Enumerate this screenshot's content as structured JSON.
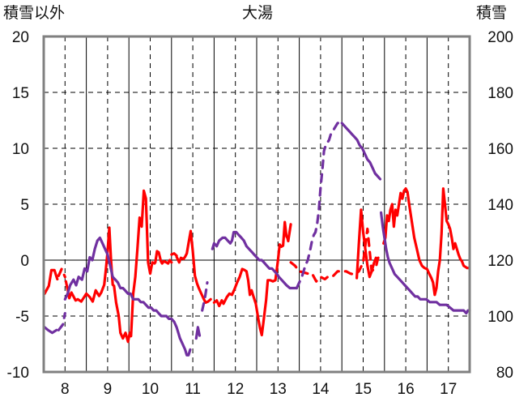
{
  "chart_data": {
    "type": "line",
    "title": "大湯",
    "left_axis_label": "積雪以外",
    "right_axis_label": "積雪",
    "y_left": {
      "min": -10,
      "max": 20,
      "step": 5,
      "ticks": [
        "20",
        "15",
        "10",
        "5",
        "0",
        "-5",
        "-10"
      ]
    },
    "y_right": {
      "min": 80,
      "max": 200,
      "step": 20,
      "ticks": [
        "200",
        "180",
        "160",
        "140",
        "120",
        "100",
        "80"
      ]
    },
    "x": {
      "min": 7.5,
      "max": 17.5,
      "ticks": [
        "8",
        "9",
        "10",
        "11",
        "12",
        "13",
        "14",
        "15",
        "16",
        "17"
      ]
    },
    "grid": {
      "vertical_solid_at_day_boundaries": true,
      "dashed_at_day_labels": true,
      "horizontal_dashed_at": [
        -5,
        5,
        10,
        15
      ]
    },
    "colors": {
      "temperature": "#ff0000",
      "snow_depth": "#7030a0",
      "axis": "#808080",
      "grid": "#000000"
    },
    "series": [
      {
        "axis": "left",
        "color": "#ff0000",
        "segments": [
          {
            "style": "solid",
            "x": [
              7.52,
              7.62,
              7.68,
              7.75,
              7.82
            ],
            "y": [
              -3.0,
              -2.3,
              -0.9,
              -0.9,
              -1.7
            ]
          },
          {
            "style": "dashed",
            "x": [
              7.85,
              7.92,
              8.0
            ],
            "y": [
              -1.4,
              -0.8,
              -1.5
            ]
          },
          {
            "style": "solid",
            "x": [
              8.02,
              8.1,
              8.15,
              8.25,
              8.3,
              8.38,
              8.45,
              8.5,
              8.58,
              8.65,
              8.72,
              8.8,
              8.85,
              8.92,
              8.96,
              9.0,
              9.04,
              9.08,
              9.12,
              9.15,
              9.2,
              9.26,
              9.3,
              9.36,
              9.42,
              9.48,
              9.52,
              9.55,
              9.6,
              9.65,
              9.7,
              9.75,
              9.8,
              9.85,
              9.9,
              9.95,
              10.0,
              10.05,
              10.1,
              10.12,
              10.16,
              10.2,
              10.25,
              10.28,
              10.32,
              10.38,
              10.42,
              10.46,
              10.5
            ],
            "y": [
              -1.9,
              -3.4,
              -2.9,
              -3.6,
              -3.5,
              -3.7,
              -3.3,
              -3.0,
              -3.3,
              -3.7,
              -2.7,
              -3.2,
              -2.9,
              -2.2,
              -0.8,
              0.8,
              2.9,
              0.0,
              -2.2,
              -2.3,
              -3.8,
              -5.0,
              -6.5,
              -7.0,
              -6.5,
              -7.3,
              -6.5,
              -6.8,
              -3.0,
              -1.5,
              1.0,
              3.8,
              3.0,
              6.2,
              5.5,
              -0.2,
              -1.2,
              -0.2,
              -0.3,
              -0.2,
              0.8,
              0.7,
              -0.1,
              -0.3,
              -0.1,
              -0.2,
              -0.3,
              0.0,
              -0.2
            ]
          },
          {
            "style": "dashed",
            "x": [
              10.5,
              10.56,
              10.62
            ],
            "y": [
              0.5,
              0.6,
              0.4
            ]
          },
          {
            "style": "solid",
            "x": [
              10.62,
              10.68,
              10.72,
              10.78,
              10.82,
              10.86,
              10.9,
              10.95,
              11.0,
              11.05,
              11.1,
              11.14,
              11.2,
              11.26,
              11.3,
              11.36,
              11.42
            ],
            "y": [
              0.3,
              -0.2,
              0.2,
              0.1,
              0.3,
              0.6,
              1.5,
              2.6,
              0.8,
              -1.4,
              -2.1,
              -2.5,
              -3.0,
              -3.5,
              -3.8,
              -3.7,
              -3.5
            ]
          },
          {
            "style": "solid",
            "x": [
              11.5,
              11.56,
              11.62,
              11.68,
              11.72,
              11.8,
              11.86,
              11.92,
              11.98,
              12.04,
              12.1,
              12.16,
              12.22,
              12.26,
              12.3,
              12.34,
              12.38,
              12.42,
              12.48,
              12.54,
              12.58,
              12.62,
              12.66,
              12.72,
              12.76,
              12.82,
              12.88,
              12.94,
              13.0,
              13.04,
              13.08,
              13.12,
              13.16,
              13.2,
              13.22,
              13.24,
              13.3
            ],
            "y": [
              -3.8,
              -3.6,
              -4.1,
              -3.6,
              -3.9,
              -3.3,
              -3.0,
              -3.1,
              -2.6,
              -2.0,
              -1.5,
              -0.8,
              -0.9,
              -1.0,
              -1.8,
              -3.1,
              -2.7,
              -3.2,
              -3.9,
              -5.3,
              -6.1,
              -6.7,
              -5.5,
              -3.6,
              -1.8,
              -1.8,
              -1.9,
              -1.8,
              0.0,
              1.4,
              1.2,
              1.3,
              3.4,
              2.1,
              2.0,
              1.7,
              3.2
            ]
          }
        ]
      },
      {
        "axis": "left",
        "color": "#ff0000",
        "segments": [
          {
            "style": "dashed",
            "x": [
              13.3,
              13.4,
              13.5,
              13.6,
              13.7,
              13.8,
              13.9,
              14.0,
              14.1,
              14.2,
              14.3,
              14.4,
              14.5,
              14.6,
              14.7,
              14.8,
              14.9,
              15.0,
              15.1,
              15.2,
              15.3,
              15.35,
              15.42
            ],
            "y": [
              -0.2,
              -0.5,
              -1.0,
              -1.1,
              -1.2,
              -1.2,
              -1.9,
              -1.5,
              -1.7,
              -1.4,
              -1.4,
              -1.0,
              -1.0,
              -1.0,
              -1.2,
              -1.3,
              -1.0,
              -0.2,
              2.8,
              -1.0,
              -0.6,
              0.2,
              0.3
            ]
          },
          {
            "style": "solid",
            "x": [
              14.85,
              14.9,
              14.95,
              15.0,
              15.05,
              15.1,
              15.15,
              15.2,
              15.25,
              15.3
            ],
            "y": [
              -1.6,
              1.5,
              4.5,
              2.5,
              1.0,
              -0.5,
              -1.5,
              -1.0,
              -0.3,
              0.2
            ]
          },
          {
            "style": "solid",
            "x": [
              15.48,
              15.52,
              15.56,
              15.6,
              15.64,
              15.68,
              15.72,
              15.76,
              15.8,
              15.84,
              15.88,
              15.92,
              15.96,
              16.0,
              16.04,
              16.08,
              16.12,
              16.16,
              16.2,
              16.26,
              16.32,
              16.38,
              16.44,
              16.5,
              16.56,
              16.6,
              16.64,
              16.68,
              16.72,
              16.76,
              16.8,
              16.84,
              16.88,
              16.92,
              16.96,
              17.0,
              17.04,
              17.08,
              17.12,
              17.16,
              17.2,
              17.24,
              17.28,
              17.32,
              17.36,
              17.4,
              17.44,
              17.48
            ],
            "y": [
              1.5,
              2.0,
              4.0,
              3.5,
              4.5,
              5.0,
              3.0,
              4.5,
              4.0,
              5.0,
              6.0,
              5.5,
              6.2,
              6.4,
              6.1,
              5.0,
              4.0,
              3.0,
              2.0,
              1.0,
              0.0,
              -0.5,
              -0.7,
              -0.8,
              -1.3,
              -1.6,
              -2.0,
              -3.1,
              -2.5,
              -1.0,
              0.0,
              2.4,
              6.4,
              5.0,
              3.5,
              3.2,
              2.8,
              2.0,
              1.0,
              1.5,
              1.0,
              0.5,
              0.1,
              -0.1,
              -0.5,
              -0.6,
              -0.7,
              -0.7
            ]
          }
        ]
      },
      {
        "axis": "right",
        "color": "#7030a0",
        "segments": [
          {
            "style": "solid",
            "x": [
              7.52,
              7.6,
              7.7,
              7.8
            ],
            "y": [
              96,
              95,
              94,
              95
            ]
          },
          {
            "style": "dashed",
            "x": [
              7.85,
              7.95,
              8.0
            ],
            "y": [
              95,
              97,
              101
            ]
          },
          {
            "style": "solid",
            "x": [
              8.0,
              8.06,
              8.12,
              8.2,
              8.26,
              8.32,
              8.4,
              8.46,
              8.52,
              8.58,
              8.64,
              8.7,
              8.76,
              8.82,
              8.88,
              8.94,
              9.0,
              9.06,
              9.12,
              9.18,
              9.24,
              9.3,
              9.36,
              9.42,
              9.48,
              9.54,
              9.6,
              9.66,
              9.72,
              9.78,
              9.84,
              9.9,
              9.96,
              10.02,
              10.08,
              10.14,
              10.2,
              10.26,
              10.32,
              10.38,
              10.44,
              10.5,
              10.56,
              10.62,
              10.66,
              10.7,
              10.76,
              10.82,
              10.86,
              10.9,
              10.94
            ],
            "y": [
              106,
              108,
              111,
              113,
              111,
              114,
              113,
              117,
              116,
              121,
              120,
              124,
              127,
              128,
              126,
              124,
              122,
              118,
              114,
              113,
              112,
              110,
              110,
              109,
              108,
              108,
              106,
              106,
              106,
              105,
              105,
              104,
              103,
              103,
              102,
              102,
              101,
              100,
              100,
              100,
              99,
              99,
              98,
              96,
              94,
              92,
              90,
              88,
              86,
              86,
              88
            ]
          },
          {
            "style": "solid",
            "x": [
              11.08,
              11.12,
              11.16
            ],
            "y": [
              92,
              96,
              93
            ]
          },
          {
            "style": "dashed",
            "x": [
              11.22,
              11.28,
              11.34
            ],
            "y": [
              102,
              106,
              112
            ]
          },
          {
            "style": "solid",
            "x": [
              11.46,
              11.5,
              11.56,
              11.62,
              11.7,
              11.76,
              11.82,
              11.88,
              11.92,
              11.96,
              12.02,
              12.08,
              12.14,
              12.2,
              12.26,
              12.32,
              12.38,
              12.44,
              12.5,
              12.56,
              12.62,
              12.68,
              12.74,
              12.8,
              12.86,
              12.92,
              12.98,
              13.02,
              13.08,
              13.14,
              13.2,
              13.28,
              13.34,
              13.4,
              13.44
            ],
            "y": [
              124,
              126,
              125,
              127,
              128,
              128,
              127,
              126,
              127,
              130,
              130,
              129,
              128,
              127,
              125,
              124,
              123,
              122,
              121,
              120,
              120,
              119,
              118,
              117,
              117,
              116,
              115,
              114,
              113,
              112,
              111,
              110,
              110,
              110,
              110
            ]
          },
          {
            "style": "dashed",
            "x": [
              13.44,
              13.5,
              13.56,
              13.6,
              13.64,
              13.7,
              13.76,
              13.8,
              13.84,
              13.88,
              13.92,
              13.96,
              14.0,
              14.04,
              14.08,
              14.12,
              14.16,
              14.2,
              14.24,
              14.28,
              14.32,
              14.36,
              14.4,
              14.44,
              14.5
            ],
            "y": [
              110,
              112,
              114,
              116,
              118,
              120,
              124,
              127,
              129,
              130,
              133,
              138,
              146,
              152,
              159,
              161,
              162,
              163,
              165,
              166,
              167,
              168,
              169,
              169,
              169
            ]
          },
          {
            "style": "solid",
            "x": [
              14.5,
              14.56,
              14.62,
              14.68,
              14.74,
              14.8,
              14.86,
              14.92,
              14.98,
              15.04,
              15.1,
              15.16,
              15.22,
              15.28,
              15.34,
              15.4
            ],
            "y": [
              169,
              168,
              167,
              166,
              165,
              164,
              163,
              161,
              160,
              158,
              156,
              155,
              153,
              151,
              150,
              149
            ]
          },
          {
            "style": "solid",
            "x": [
              15.42,
              15.46,
              15.5,
              15.54,
              15.58,
              15.62,
              15.68,
              15.74,
              15.8,
              15.86,
              15.92,
              15.98,
              16.04,
              16.1,
              16.16,
              16.22,
              16.28,
              16.34,
              16.4,
              16.48,
              16.56,
              16.64,
              16.72,
              16.8,
              16.88,
              16.96,
              17.04,
              17.12,
              17.2,
              17.28,
              17.36,
              17.42,
              17.46,
              17.5
            ],
            "y": [
              137,
              132,
              128,
              124,
              121,
              119,
              117,
              115,
              114,
              113,
              112,
              111,
              110,
              109,
              108,
              107,
              107,
              106,
              106,
              106,
              105,
              105,
              105,
              104,
              104,
              104,
              103,
              102,
              102,
              102,
              102,
              101,
              102,
              102
            ]
          }
        ]
      }
    ]
  }
}
